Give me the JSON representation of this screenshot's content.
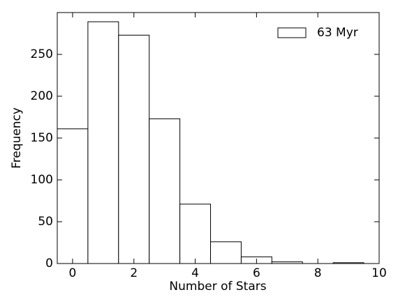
{
  "chart_data": {
    "type": "histogram",
    "xlabel": "Number of Stars",
    "ylabel": "Frequency",
    "bins": [
      -0.5,
      0.5,
      1.5,
      2.5,
      3.5,
      4.5,
      5.5,
      6.5,
      7.5,
      8.5,
      9.5
    ],
    "series": [
      {
        "name": "63 Myr",
        "color": "#ffffff",
        "values": [
          161,
          289,
          273,
          173,
          71,
          26,
          8,
          2,
          0,
          1
        ]
      }
    ],
    "edgecolor": "#000000",
    "xlim": [
      -0.5,
      10
    ],
    "xticks": [
      0,
      2,
      4,
      6,
      8,
      10
    ],
    "ylim": [
      0,
      300
    ],
    "yticks": [
      0,
      50,
      100,
      150,
      200,
      250
    ],
    "legend": "upper right"
  }
}
